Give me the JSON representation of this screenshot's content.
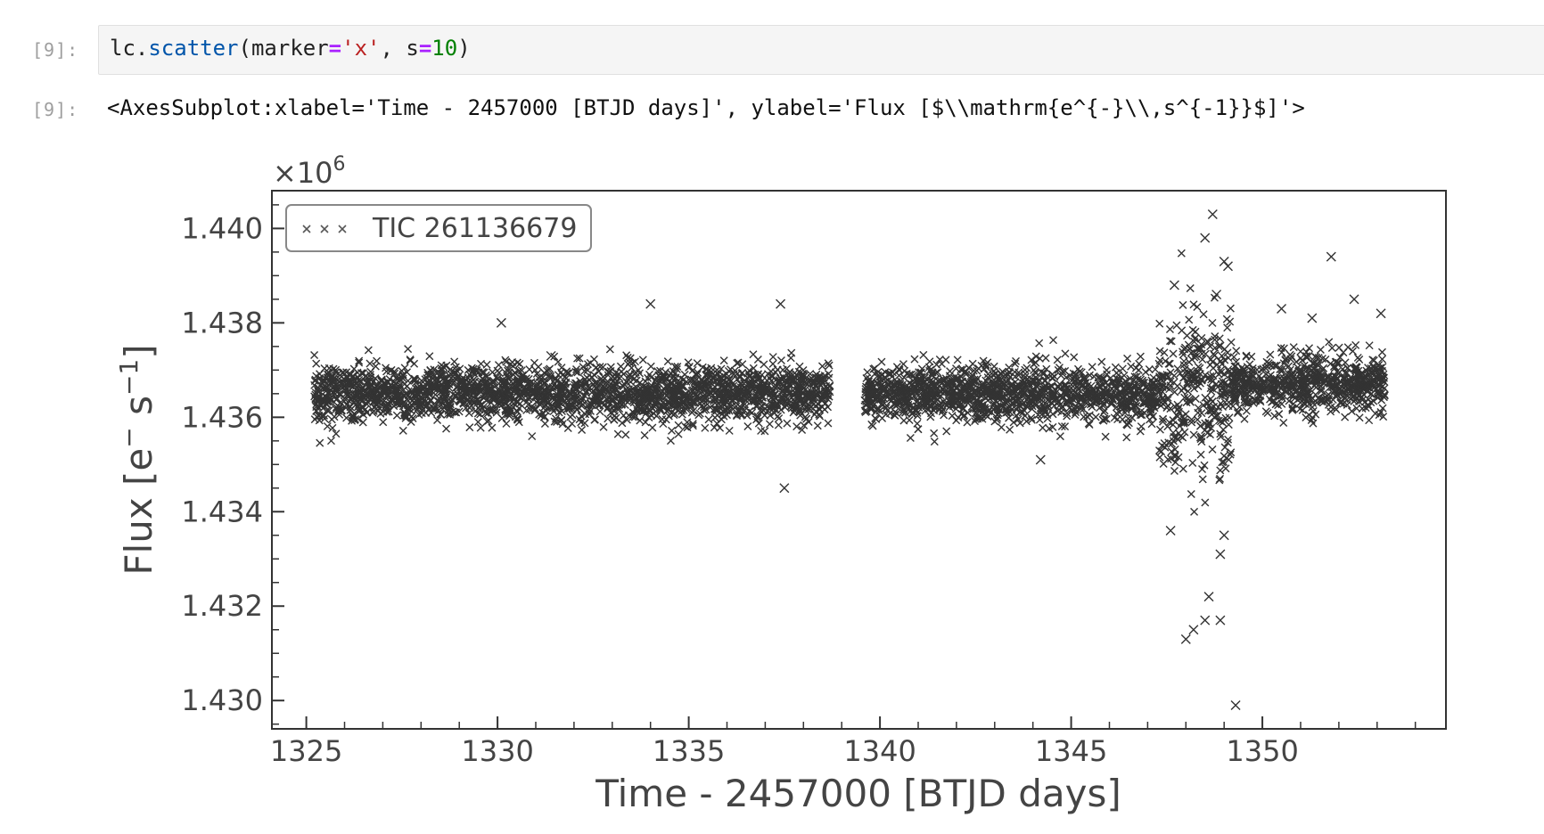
{
  "cell_input": {
    "prompt": "[9]:",
    "code_tokens": [
      {
        "text": "lc",
        "cls": "tok-name"
      },
      {
        "text": ".",
        "cls": "tok-name"
      },
      {
        "text": "scatter",
        "cls": "tok-attr"
      },
      {
        "text": "(",
        "cls": "tok-name"
      },
      {
        "text": "marker",
        "cls": "tok-name"
      },
      {
        "text": "=",
        "cls": "tok-op"
      },
      {
        "text": "'x'",
        "cls": "tok-str"
      },
      {
        "text": ", ",
        "cls": "tok-name"
      },
      {
        "text": "s",
        "cls": "tok-name"
      },
      {
        "text": "=",
        "cls": "tok-op"
      },
      {
        "text": "10",
        "cls": "tok-num"
      },
      {
        "text": ")",
        "cls": "tok-name"
      }
    ]
  },
  "cell_output": {
    "prompt": "[9]:",
    "text": "<AxesSubplot:xlabel='Time - 2457000 [BTJD days]', ylabel='Flux [$\\\\mathrm{e^{-}\\\\,s^{-1}}$]'>"
  },
  "chart_data": {
    "type": "scatter",
    "title": "",
    "xlabel": "Time - 2457000 [BTJD days]",
    "ylabel_parts": {
      "main": "Flux [e",
      "sup1": "−",
      "mid": " s",
      "sup2": "−1",
      "end": "]"
    },
    "y_offset_label": {
      "base": "×10",
      "exp": "6"
    },
    "xlim": [
      1324.1,
      1354.8
    ],
    "ylim": [
      1.4294,
      1.4408
    ],
    "x_ticks": [
      1325,
      1330,
      1335,
      1340,
      1345,
      1350
    ],
    "x_tick_labels": [
      "1325",
      "1330",
      "1335",
      "1340",
      "1345",
      "1350"
    ],
    "x_minor_step": 1,
    "y_ticks": [
      1.43,
      1.432,
      1.434,
      1.436,
      1.438,
      1.44
    ],
    "y_tick_labels": [
      "1.430",
      "1.432",
      "1.434",
      "1.436",
      "1.438",
      "1.440"
    ],
    "y_minor_step": 0.0005,
    "grid": false,
    "legend_position": "top-left",
    "series": [
      {
        "name": "TIC 261136679",
        "marker": "x",
        "color": "#333333",
        "segments": [
          {
            "x_start": 1325.2,
            "x_end": 1338.7,
            "baseline": 1.4365,
            "spread": 0.0003
          },
          {
            "x_start": 1339.6,
            "x_end": 1347.3,
            "baseline": 1.4365,
            "spread": 0.0003
          },
          {
            "x_start": 1347.3,
            "x_end": 1349.2,
            "baseline": 1.4365,
            "spread": 0.0009
          },
          {
            "x_start": 1349.2,
            "x_end": 1353.2,
            "baseline": 1.4367,
            "spread": 0.0003
          }
        ],
        "outliers": [
          [
            1337.5,
            1.4345
          ],
          [
            1334.0,
            1.4384
          ],
          [
            1337.4,
            1.4384
          ],
          [
            1348.7,
            1.4403
          ],
          [
            1348.5,
            1.4398
          ],
          [
            1348.2,
            1.4315
          ],
          [
            1348.5,
            1.4317
          ],
          [
            1348.9,
            1.4317
          ],
          [
            1348.0,
            1.4313
          ],
          [
            1349.3,
            1.4299
          ],
          [
            1348.6,
            1.4322
          ],
          [
            1351.8,
            1.4394
          ],
          [
            1352.4,
            1.4385
          ],
          [
            1353.1,
            1.4382
          ],
          [
            1347.6,
            1.4336
          ],
          [
            1349.0,
            1.4335
          ],
          [
            1348.9,
            1.4331
          ],
          [
            1344.2,
            1.4351
          ],
          [
            1330.1,
            1.438
          ],
          [
            1331.4,
            1.4373
          ],
          [
            1349.0,
            1.4393
          ],
          [
            1349.1,
            1.4392
          ],
          [
            1348.8,
            1.4386
          ],
          [
            1347.7,
            1.4388
          ],
          [
            1350.5,
            1.4383
          ],
          [
            1351.3,
            1.4381
          ]
        ]
      }
    ]
  }
}
